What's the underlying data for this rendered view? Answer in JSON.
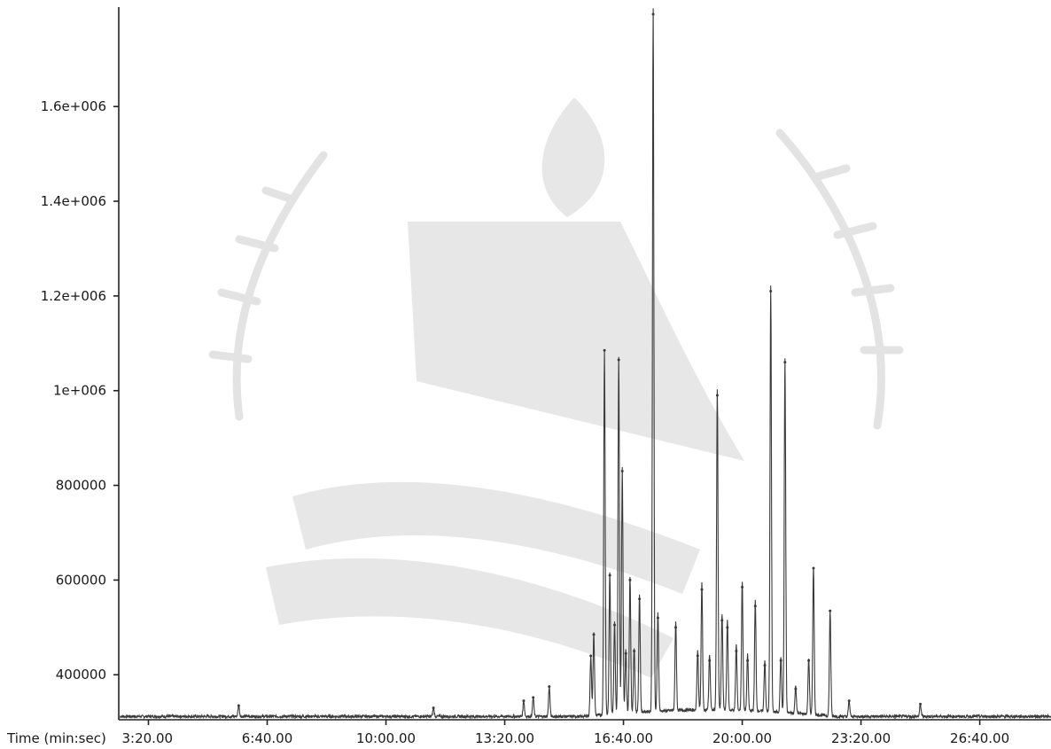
{
  "chart_data": {
    "type": "line",
    "title": "",
    "xlabel": "Time (min:sec)",
    "ylabel": "",
    "x_unit": "seconds",
    "xlim": [
      150,
      1720
    ],
    "ylim": [
      305000,
      1810000
    ],
    "grid": false,
    "legend": "none",
    "x_ticks": [
      {
        "value": 200,
        "label": "3:20.00"
      },
      {
        "value": 400,
        "label": "6:40.00"
      },
      {
        "value": 600,
        "label": "10:00.00"
      },
      {
        "value": 800,
        "label": "13:20.00"
      },
      {
        "value": 1000,
        "label": "16:40.00"
      },
      {
        "value": 1200,
        "label": "20:00.00"
      },
      {
        "value": 1400,
        "label": "23:20.00"
      },
      {
        "value": 1600,
        "label": "26:40.00"
      }
    ],
    "y_ticks": [
      {
        "value": 400000,
        "label": "400000"
      },
      {
        "value": 600000,
        "label": "600000"
      },
      {
        "value": 800000,
        "label": "800000"
      },
      {
        "value": 1000000,
        "label": "1e+006"
      },
      {
        "value": 1200000,
        "label": "1.2e+006"
      },
      {
        "value": 1400000,
        "label": "1.4e+006"
      },
      {
        "value": 1600000,
        "label": "1.6e+006"
      }
    ],
    "series": [
      {
        "baseline": 312000,
        "noise": 6000,
        "color": "#3a3a3a",
        "peaks": [
          {
            "x": 352,
            "y": 335000
          },
          {
            "x": 680,
            "y": 330000
          },
          {
            "x": 832,
            "y": 345000
          },
          {
            "x": 848,
            "y": 352000
          },
          {
            "x": 875,
            "y": 375000
          },
          {
            "x": 945,
            "y": 440000
          },
          {
            "x": 950,
            "y": 485000
          },
          {
            "x": 968,
            "y": 1085000
          },
          {
            "x": 977,
            "y": 610000
          },
          {
            "x": 985,
            "y": 505000
          },
          {
            "x": 992,
            "y": 1065000
          },
          {
            "x": 998,
            "y": 830000
          },
          {
            "x": 1004,
            "y": 445000
          },
          {
            "x": 1011,
            "y": 600000
          },
          {
            "x": 1018,
            "y": 450000
          },
          {
            "x": 1027,
            "y": 560000
          },
          {
            "x": 1050,
            "y": 1795000
          },
          {
            "x": 1058,
            "y": 520000
          },
          {
            "x": 1088,
            "y": 500000
          },
          {
            "x": 1125,
            "y": 440000
          },
          {
            "x": 1132,
            "y": 580000
          },
          {
            "x": 1145,
            "y": 430000
          },
          {
            "x": 1158,
            "y": 990000
          },
          {
            "x": 1166,
            "y": 515000
          },
          {
            "x": 1175,
            "y": 500000
          },
          {
            "x": 1190,
            "y": 450000
          },
          {
            "x": 1200,
            "y": 585000
          },
          {
            "x": 1209,
            "y": 430000
          },
          {
            "x": 1222,
            "y": 545000
          },
          {
            "x": 1238,
            "y": 420000
          },
          {
            "x": 1248,
            "y": 1210000
          },
          {
            "x": 1265,
            "y": 430000
          },
          {
            "x": 1272,
            "y": 1060000
          },
          {
            "x": 1290,
            "y": 370000
          },
          {
            "x": 1312,
            "y": 430000
          },
          {
            "x": 1320,
            "y": 625000
          },
          {
            "x": 1348,
            "y": 535000
          },
          {
            "x": 1380,
            "y": 345000
          },
          {
            "x": 1500,
            "y": 338000
          }
        ]
      }
    ]
  }
}
